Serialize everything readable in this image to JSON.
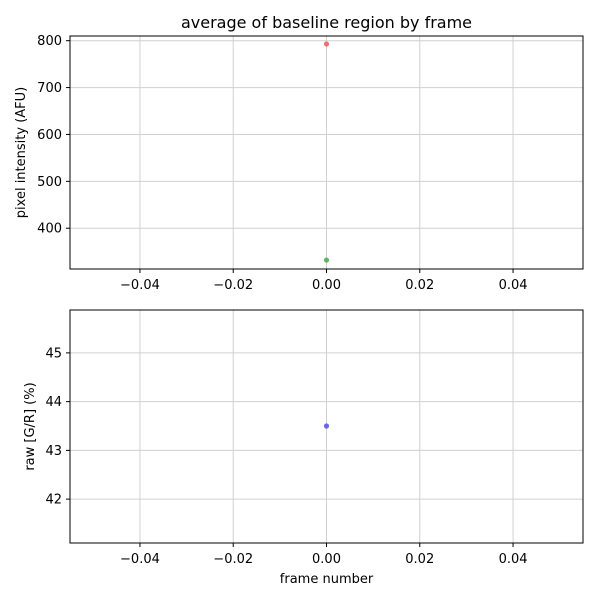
{
  "chart_data": [
    {
      "type": "scatter",
      "title": "average of baseline region by frame",
      "xlabel": "",
      "ylabel": "pixel intensity (AFU)",
      "xlim": [
        -0.055,
        0.055
      ],
      "ylim": [
        313,
        810
      ],
      "xticks": [
        -0.04,
        -0.02,
        0.0,
        0.02,
        0.04
      ],
      "xtick_labels": [
        "−0.04",
        "−0.02",
        "0.00",
        "0.02",
        "0.04"
      ],
      "yticks": [
        400,
        500,
        600,
        700,
        800
      ],
      "ytick_labels": [
        "400",
        "500",
        "600",
        "700",
        "800"
      ],
      "grid": true,
      "series": [
        {
          "color": "#f06060",
          "points": [
            [
              0,
              793
            ]
          ]
        },
        {
          "color": "#4caf50",
          "points": [
            [
              0,
              332
            ]
          ]
        }
      ]
    },
    {
      "type": "scatter",
      "title": "",
      "xlabel": "frame number",
      "ylabel": "raw [G/R] (%)",
      "xlim": [
        -0.055,
        0.055
      ],
      "ylim": [
        41.1,
        45.88
      ],
      "xticks": [
        -0.04,
        -0.02,
        0.0,
        0.02,
        0.04
      ],
      "xtick_labels": [
        "−0.04",
        "−0.02",
        "0.00",
        "0.02",
        "0.04"
      ],
      "yticks": [
        42,
        43,
        44,
        45
      ],
      "ytick_labels": [
        "42",
        "43",
        "44",
        "45"
      ],
      "grid": true,
      "series": [
        {
          "color": "#5a5ae6",
          "points": [
            [
              0,
              43.5
            ]
          ]
        }
      ]
    }
  ]
}
